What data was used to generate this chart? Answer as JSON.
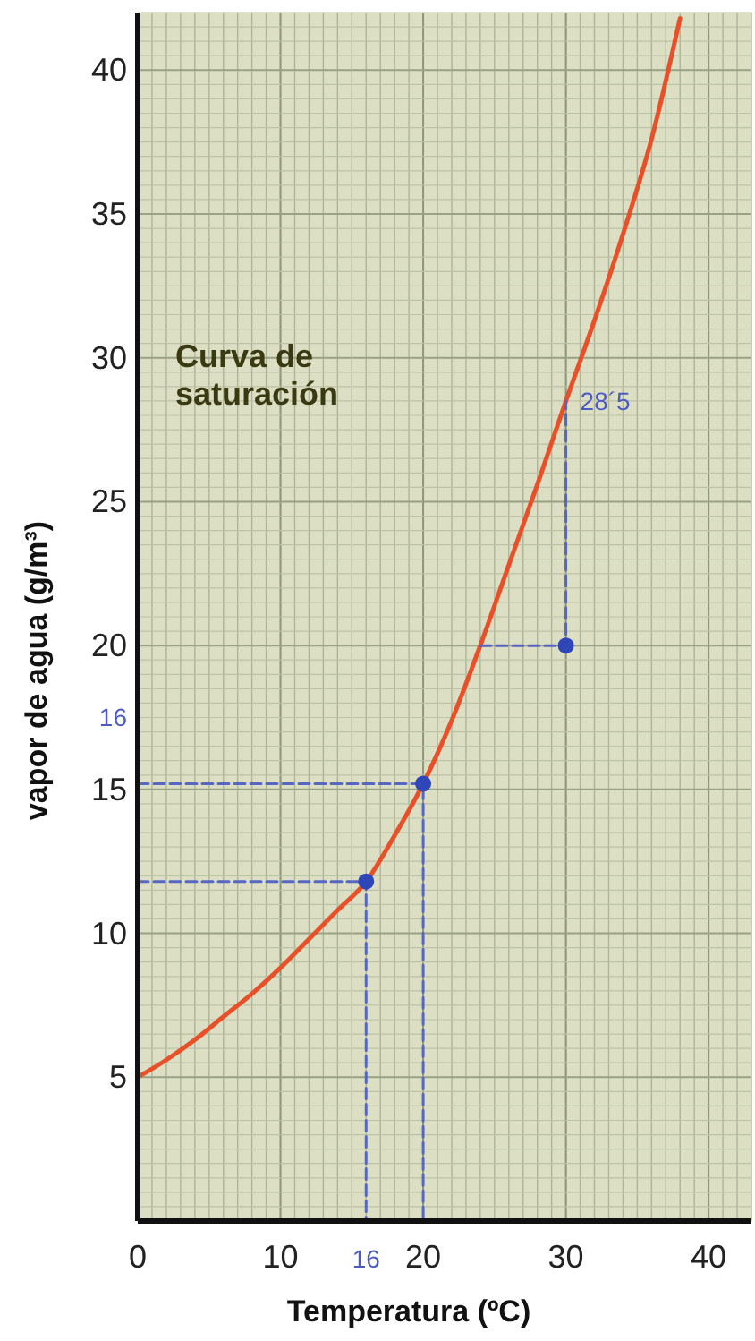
{
  "chart_data": {
    "type": "line",
    "xlabel": "Temperatura (ºC)",
    "ylabel": "vapor de agua (g/m³)",
    "xlim": [
      0,
      43
    ],
    "ylim": [
      0,
      42
    ],
    "xticks": [
      0,
      10,
      20,
      30,
      40
    ],
    "yticks": [
      5,
      10,
      15,
      20,
      25,
      30,
      35,
      40
    ],
    "grid": true,
    "annotations": [
      "Curva de saturación",
      {
        "text": "28´5",
        "x": 30,
        "y": 28.5
      },
      {
        "text": "16",
        "x": 16,
        "y": 0
      },
      "16"
    ],
    "series": [
      {
        "color": "#e8502a",
        "line_style": "solid",
        "x": [
          0,
          2,
          4,
          6,
          8,
          10,
          12,
          14,
          16,
          18,
          20,
          22,
          24,
          26,
          28,
          30,
          32,
          34,
          36,
          38
        ],
        "values": [
          5,
          5.6,
          6.3,
          7.1,
          7.9,
          8.8,
          9.8,
          10.8,
          11.8,
          13.4,
          15.2,
          17.4,
          20,
          22.8,
          25.6,
          28.5,
          31.3,
          34.3,
          37.6,
          41.8
        ]
      },
      {
        "type": "line",
        "color": "#5566c4",
        "line_style": "dashed",
        "x": [
          0,
          16,
          16
        ],
        "values": [
          11.8,
          11.8,
          0
        ]
      },
      {
        "type": "line",
        "color": "#5566c4",
        "line_style": "dashed",
        "x": [
          0,
          20,
          20
        ],
        "values": [
          15.2,
          15.2,
          0
        ]
      },
      {
        "type": "line",
        "color": "#5566c4",
        "line_style": "dashed",
        "x": [
          24,
          30,
          30
        ],
        "values": [
          20,
          20,
          28.5
        ]
      },
      {
        "type": "scatter",
        "color": "#2e46b8",
        "marker": "circle",
        "x": [
          16,
          20,
          30
        ],
        "values": [
          11.8,
          15.2,
          20
        ]
      }
    ]
  }
}
